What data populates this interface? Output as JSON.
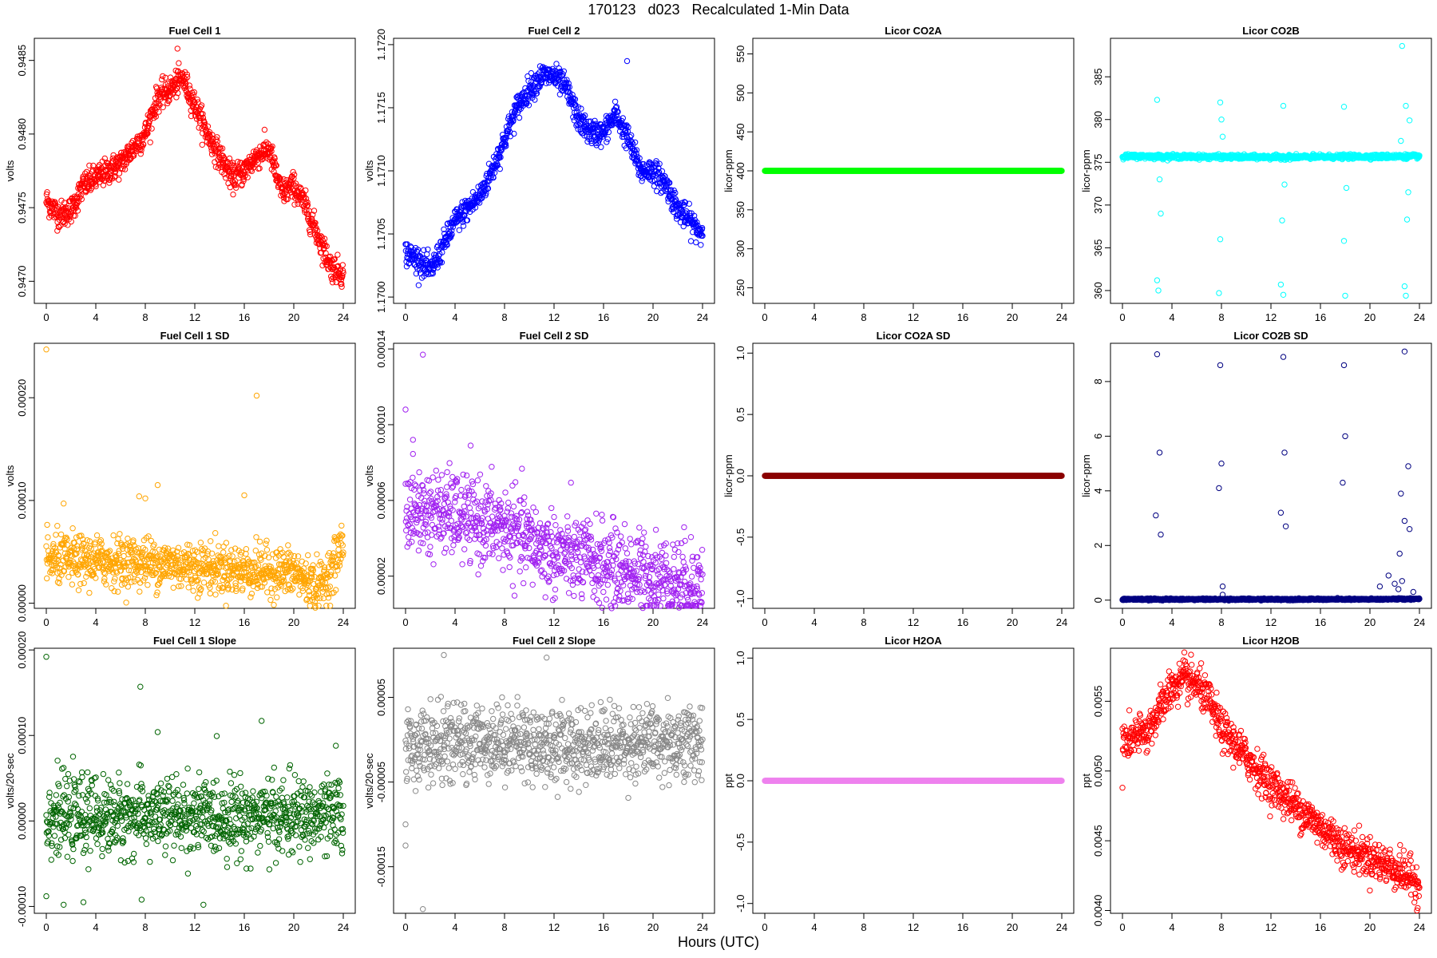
{
  "figure": {
    "title": "170123   d023   Recalculated 1-Min Data",
    "xlabel": "Hours (UTC)"
  },
  "chart_data": [
    {
      "type": "scatter",
      "title": "Fuel Cell 1",
      "ylabel": "volts",
      "color": "#ff0000",
      "xlim": [
        0,
        24
      ],
      "xticks": [
        "0",
        "4",
        "8",
        "12",
        "16",
        "20",
        "24"
      ],
      "ylim": [
        0.94685,
        0.94865
      ],
      "yticks": [
        {
          "v": 0.947,
          "label": "0.9470"
        },
        {
          "v": 0.9475,
          "label": "0.9475"
        },
        {
          "v": 0.948,
          "label": "0.9480"
        },
        {
          "v": 0.9485,
          "label": "0.9485"
        }
      ],
      "profile": [
        [
          0,
          0.94755
        ],
        [
          1,
          0.94745
        ],
        [
          2,
          0.94748
        ],
        [
          3,
          0.94765
        ],
        [
          4,
          0.9477
        ],
        [
          6,
          0.9478
        ],
        [
          8,
          0.948
        ],
        [
          9,
          0.94825
        ],
        [
          10,
          0.9483
        ],
        [
          11,
          0.94838
        ],
        [
          12,
          0.9482
        ],
        [
          13,
          0.948
        ],
        [
          15,
          0.9477
        ],
        [
          16,
          0.94775
        ],
        [
          17,
          0.94785
        ],
        [
          18,
          0.9479
        ],
        [
          19,
          0.9476
        ],
        [
          20,
          0.94765
        ],
        [
          21,
          0.9475
        ],
        [
          22,
          0.9473
        ],
        [
          23,
          0.9471
        ],
        [
          24,
          0.94705
        ]
      ],
      "noise": 4.5e-05,
      "outliers": [
        [
          10.6,
          0.94858
        ]
      ]
    },
    {
      "type": "scatter",
      "title": "Fuel Cell 2",
      "ylabel": "volts",
      "color": "#0000ff",
      "xlim": [
        0,
        24
      ],
      "xticks": [
        "0",
        "4",
        "8",
        "12",
        "16",
        "20",
        "24"
      ],
      "ylim": [
        1.16995,
        1.17205
      ],
      "yticks": [
        {
          "v": 1.17,
          "label": "1.1700"
        },
        {
          "v": 1.1705,
          "label": "1.1705"
        },
        {
          "v": 1.171,
          "label": "1.1710"
        },
        {
          "v": 1.1715,
          "label": "1.1715"
        },
        {
          "v": 1.172,
          "label": "1.1720"
        }
      ],
      "profile": [
        [
          0,
          1.17035
        ],
        [
          1,
          1.1703
        ],
        [
          2,
          1.1702
        ],
        [
          3,
          1.1704
        ],
        [
          4,
          1.1706
        ],
        [
          6,
          1.1708
        ],
        [
          7,
          1.171
        ],
        [
          8,
          1.17125
        ],
        [
          9,
          1.1715
        ],
        [
          10,
          1.17165
        ],
        [
          11,
          1.17175
        ],
        [
          12,
          1.17175
        ],
        [
          13,
          1.17165
        ],
        [
          14,
          1.1714
        ],
        [
          15,
          1.1713
        ],
        [
          16,
          1.1713
        ],
        [
          17,
          1.17145
        ],
        [
          18,
          1.17125
        ],
        [
          19,
          1.171
        ],
        [
          20,
          1.171
        ],
        [
          21,
          1.1709
        ],
        [
          22,
          1.1707
        ],
        [
          23,
          1.1706
        ],
        [
          24,
          1.1705
        ]
      ],
      "noise": 5e-05,
      "outliers": [
        [
          17.9,
          1.17187
        ]
      ]
    },
    {
      "type": "scatter",
      "title": "Licor CO2A",
      "ylabel": "licor-ppm",
      "color": "#00ff00",
      "xlim": [
        0,
        24
      ],
      "xticks": [
        "0",
        "4",
        "8",
        "12",
        "16",
        "20",
        "24"
      ],
      "ylim": [
        230,
        570
      ],
      "yticks": [
        {
          "v": 250,
          "label": "250"
        },
        {
          "v": 300,
          "label": "300"
        },
        {
          "v": 350,
          "label": "350"
        },
        {
          "v": 400,
          "label": "400"
        },
        {
          "v": 450,
          "label": "450"
        },
        {
          "v": 500,
          "label": "500"
        },
        {
          "v": 550,
          "label": "550"
        }
      ],
      "profile": [
        [
          0,
          400
        ],
        [
          24,
          400
        ]
      ],
      "noise": 0,
      "outliers": []
    },
    {
      "type": "scatter",
      "title": "Licor CO2B",
      "ylabel": "licor-ppm",
      "color": "#00ffff",
      "xlim": [
        0,
        24
      ],
      "xticks": [
        "0",
        "4",
        "8",
        "12",
        "16",
        "20",
        "24"
      ],
      "ylim": [
        358.5,
        389.5
      ],
      "yticks": [
        {
          "v": 360,
          "label": "360"
        },
        {
          "v": 365,
          "label": "365"
        },
        {
          "v": 370,
          "label": "370"
        },
        {
          "v": 375,
          "label": "375"
        },
        {
          "v": 380,
          "label": "380"
        },
        {
          "v": 385,
          "label": "385"
        }
      ],
      "profile": [
        [
          0,
          375.7
        ],
        [
          12,
          375.6
        ],
        [
          24,
          375.7
        ]
      ],
      "noise": 0.12,
      "outliers": [
        [
          2.8,
          382.3
        ],
        [
          2.9,
          360
        ],
        [
          2.8,
          361.2
        ],
        [
          3.1,
          369
        ],
        [
          3.0,
          373
        ],
        [
          7.9,
          382
        ],
        [
          8.0,
          380
        ],
        [
          7.8,
          359.7
        ],
        [
          7.9,
          366
        ],
        [
          8.1,
          378
        ],
        [
          13.0,
          381.6
        ],
        [
          12.9,
          368.2
        ],
        [
          12.8,
          360.7
        ],
        [
          13.0,
          359.5
        ],
        [
          13.1,
          372.4
        ],
        [
          17.9,
          381.5
        ],
        [
          18.0,
          359.4
        ],
        [
          17.9,
          365.8
        ],
        [
          18.1,
          372
        ],
        [
          22.6,
          388.6
        ],
        [
          22.9,
          381.6
        ],
        [
          23.0,
          368.3
        ],
        [
          22.8,
          360.5
        ],
        [
          22.9,
          359.4
        ],
        [
          23.1,
          371.5
        ],
        [
          23.2,
          379.9
        ],
        [
          22.5,
          377.5
        ]
      ]
    },
    {
      "type": "scatter",
      "title": "Fuel Cell 1 SD",
      "ylabel": "volts",
      "color": "#ffa500",
      "xlim": [
        0,
        24
      ],
      "xticks": [
        "0",
        "4",
        "8",
        "12",
        "16",
        "20",
        "24"
      ],
      "ylim": [
        -5e-06,
        0.000253
      ],
      "yticks": [
        {
          "v": 0,
          "label": "0.00000"
        },
        {
          "v": 0.0001,
          "label": "0.00010"
        },
        {
          "v": 0.0002,
          "label": "0.00020"
        }
      ],
      "profile": [
        [
          0,
          4.2e-05
        ],
        [
          8,
          4e-05
        ],
        [
          16,
          3.2e-05
        ],
        [
          20,
          3e-05
        ],
        [
          22,
          1.5e-05
        ],
        [
          23,
          3e-05
        ],
        [
          24,
          6e-05
        ]
      ],
      "noise": 1.2e-05,
      "outliers": [
        [
          0,
          0.000247
        ],
        [
          17.0,
          0.000202
        ],
        [
          9.0,
          0.000115
        ],
        [
          1.4,
          9.7e-05
        ],
        [
          16.0,
          0.000105
        ],
        [
          7.5,
          0.000104
        ],
        [
          8.0,
          0.000102
        ]
      ]
    },
    {
      "type": "scatter",
      "title": "Fuel Cell 2 SD",
      "ylabel": "volts",
      "color": "#a020f0",
      "xlim": [
        0,
        24
      ],
      "xticks": [
        "0",
        "4",
        "8",
        "12",
        "16",
        "20",
        "24"
      ],
      "ylim": [
        3e-06,
        0.000143
      ],
      "yticks": [
        {
          "v": 2e-05,
          "label": "0.00002"
        },
        {
          "v": 6e-05,
          "label": "0.00006"
        },
        {
          "v": 0.0001,
          "label": "0.00010"
        },
        {
          "v": 0.00014,
          "label": "0.00014"
        }
      ],
      "profile": [
        [
          0,
          5.5e-05
        ],
        [
          4,
          5.2e-05
        ],
        [
          8,
          4.5e-05
        ],
        [
          12,
          3.2e-05
        ],
        [
          16,
          2.6e-05
        ],
        [
          20,
          2e-05
        ],
        [
          24,
          1.6e-05
        ]
      ],
      "noise": 1.1e-05,
      "outliers": [
        [
          1.4,
          0.000137
        ],
        [
          0,
          0.000108
        ],
        [
          0.6,
          9.2e-05
        ]
      ]
    },
    {
      "type": "scatter",
      "title": "Licor CO2A SD",
      "ylabel": "licor-ppm",
      "color": "#8b0000",
      "xlim": [
        0,
        24
      ],
      "xticks": [
        "0",
        "4",
        "8",
        "12",
        "16",
        "20",
        "24"
      ],
      "ylim": [
        -1.08,
        1.08
      ],
      "yticks": [
        {
          "v": -1,
          "label": "-1.0"
        },
        {
          "v": -0.5,
          "label": "-0.5"
        },
        {
          "v": 0,
          "label": "0.0"
        },
        {
          "v": 0.5,
          "label": "0.5"
        },
        {
          "v": 1,
          "label": "1.0"
        }
      ],
      "profile": [
        [
          0,
          0
        ],
        [
          24,
          0
        ]
      ],
      "noise": 0,
      "outliers": []
    },
    {
      "type": "scatter",
      "title": "Licor CO2B SD",
      "ylabel": "licor-ppm",
      "color": "#000080",
      "xlim": [
        0,
        24
      ],
      "xticks": [
        "0",
        "4",
        "8",
        "12",
        "16",
        "20",
        "24"
      ],
      "ylim": [
        -0.3,
        9.4
      ],
      "yticks": [
        {
          "v": 0,
          "label": "0"
        },
        {
          "v": 2,
          "label": "2"
        },
        {
          "v": 4,
          "label": "4"
        },
        {
          "v": 6,
          "label": "6"
        },
        {
          "v": 8,
          "label": "8"
        }
      ],
      "profile": [
        [
          0,
          0.03
        ],
        [
          20,
          0.03
        ],
        [
          24,
          0.05
        ]
      ],
      "noise": 0.015,
      "outliers": [
        [
          2.8,
          9.0
        ],
        [
          3.0,
          5.4
        ],
        [
          2.7,
          3.1
        ],
        [
          3.1,
          2.4
        ],
        [
          7.9,
          8.6
        ],
        [
          8.0,
          5.0
        ],
        [
          7.8,
          4.1
        ],
        [
          8.1,
          0.5
        ],
        [
          8.1,
          0.2
        ],
        [
          13.0,
          8.9
        ],
        [
          13.1,
          5.4
        ],
        [
          12.8,
          3.2
        ],
        [
          13.2,
          2.7
        ],
        [
          17.9,
          8.6
        ],
        [
          18.0,
          6.0
        ],
        [
          17.8,
          4.3
        ],
        [
          22.8,
          9.1
        ],
        [
          23.1,
          4.9
        ],
        [
          22.5,
          3.9
        ],
        [
          22.8,
          2.9
        ],
        [
          23.2,
          2.6
        ],
        [
          22.4,
          1.7
        ],
        [
          21.5,
          0.9
        ],
        [
          22.0,
          0.6
        ],
        [
          20.8,
          0.5
        ],
        [
          22.6,
          0.7
        ],
        [
          22.3,
          0.4
        ],
        [
          23.5,
          0.3
        ]
      ]
    },
    {
      "type": "scatter",
      "title": "Fuel Cell 1 Slope",
      "ylabel": "volts/20-sec",
      "color": "#006400",
      "xlim": [
        0,
        24
      ],
      "xticks": [
        "0",
        "4",
        "8",
        "12",
        "16",
        "20",
        "24"
      ],
      "ylim": [
        -0.000108,
        0.000202
      ],
      "yticks": [
        {
          "v": -0.0001,
          "label": "-0.00010"
        },
        {
          "v": 0,
          "label": "0.00000"
        },
        {
          "v": 0.0001,
          "label": "0.00010"
        },
        {
          "v": 0.0002,
          "label": "0.00020"
        }
      ],
      "profile": [
        [
          0,
          5e-06
        ],
        [
          24,
          5e-06
        ]
      ],
      "noise": 2.2e-05,
      "outliers": [
        [
          0,
          0.000192
        ],
        [
          7.6,
          0.000157
        ],
        [
          17.4,
          0.000117
        ],
        [
          9.0,
          0.000104
        ],
        [
          23.4,
          8.8e-05
        ],
        [
          0,
          -8.8e-05
        ],
        [
          1.4,
          -9.8e-05
        ],
        [
          12.7,
          -9.8e-05
        ],
        [
          3.0,
          -9.5e-05
        ],
        [
          7.7,
          -9.2e-05
        ]
      ]
    },
    {
      "type": "scatter",
      "title": "Fuel Cell 2 Slope",
      "ylabel": "volts/20-sec",
      "color": "#888888",
      "xlim": [
        0,
        24
      ],
      "xticks": [
        "0",
        "4",
        "8",
        "12",
        "16",
        "20",
        "24"
      ],
      "ylim": [
        -0.000205,
        0.000108
      ],
      "yticks": [
        {
          "v": -0.00015,
          "label": "-0.00015"
        },
        {
          "v": -5e-05,
          "label": "-0.00005"
        },
        {
          "v": 5e-05,
          "label": "0.00005"
        }
      ],
      "profile": [
        [
          0,
          -8e-06
        ],
        [
          4,
          -5e-06
        ],
        [
          8,
          0
        ],
        [
          12,
          -8e-06
        ],
        [
          16,
          -5e-06
        ],
        [
          20,
          -3e-06
        ],
        [
          24,
          -2e-06
        ]
      ],
      "noise": 2.2e-05,
      "outliers": [
        [
          1.4,
          -0.0002
        ],
        [
          0,
          -0.000125
        ],
        [
          0,
          -0.0001
        ],
        [
          3.1,
          0.0001
        ],
        [
          11.4,
          9.7e-05
        ]
      ]
    },
    {
      "type": "scatter",
      "title": "Licor H2OA",
      "ylabel": "ppt",
      "color": "#ee82ee",
      "xlim": [
        0,
        24
      ],
      "xticks": [
        "0",
        "4",
        "8",
        "12",
        "16",
        "20",
        "24"
      ],
      "ylim": [
        -1.08,
        1.08
      ],
      "yticks": [
        {
          "v": -1,
          "label": "-1.0"
        },
        {
          "v": -0.5,
          "label": "-0.5"
        },
        {
          "v": 0,
          "label": "0.0"
        },
        {
          "v": 0.5,
          "label": "0.5"
        },
        {
          "v": 1,
          "label": "1.0"
        }
      ],
      "profile": [
        [
          0,
          0
        ],
        [
          24,
          0
        ]
      ],
      "noise": 0,
      "outliers": []
    },
    {
      "type": "scatter",
      "title": "Licor H2OB",
      "ylabel": "ppt",
      "color": "#ff0000",
      "xlim": [
        0,
        24
      ],
      "xticks": [
        "0",
        "4",
        "8",
        "12",
        "16",
        "20",
        "24"
      ],
      "ylim": [
        0.00398,
        0.00588
      ],
      "yticks": [
        {
          "v": 0.004,
          "label": "0.0040"
        },
        {
          "v": 0.0045,
          "label": "0.0045"
        },
        {
          "v": 0.005,
          "label": "0.0050"
        },
        {
          "v": 0.0055,
          "label": "0.0055"
        }
      ],
      "profile": [
        [
          0,
          0.0052
        ],
        [
          2,
          0.00528
        ],
        [
          4,
          0.0056
        ],
        [
          5,
          0.00565
        ],
        [
          6,
          0.00562
        ],
        [
          7,
          0.0055
        ],
        [
          8,
          0.0053
        ],
        [
          10,
          0.0051
        ],
        [
          12,
          0.0049
        ],
        [
          14,
          0.00475
        ],
        [
          16,
          0.0046
        ],
        [
          18,
          0.00445
        ],
        [
          20,
          0.00438
        ],
        [
          22,
          0.0043
        ],
        [
          24,
          0.0042
        ]
      ],
      "noise": 7e-05,
      "outliers": [
        [
          0,
          0.00488
        ],
        [
          23.8,
          0.004
        ],
        [
          5.0,
          0.00585
        ]
      ]
    }
  ]
}
